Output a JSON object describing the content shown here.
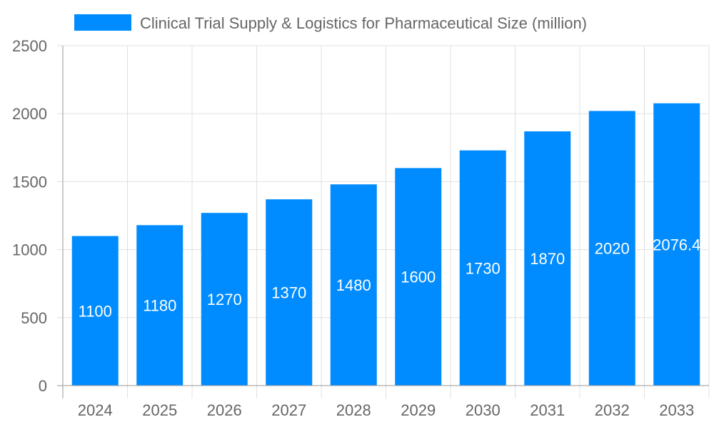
{
  "chart_data": {
    "type": "bar",
    "categories": [
      "2024",
      "2025",
      "2026",
      "2027",
      "2028",
      "2029",
      "2030",
      "2031",
      "2032",
      "2033"
    ],
    "series": [
      {
        "name": "Clinical Trial Supply & Logistics for Pharmaceutical Size (million)",
        "values": [
          1100,
          1180,
          1270,
          1370,
          1480,
          1600,
          1730,
          1870,
          2020,
          2076.4
        ]
      }
    ],
    "data_labels": [
      "1100",
      "1180",
      "1270",
      "1370",
      "1480",
      "1600",
      "1730",
      "1870",
      "2020",
      "2076.4"
    ],
    "ylim": [
      0,
      2500
    ],
    "yticks": [
      0,
      500,
      1000,
      1500,
      2000,
      2500
    ],
    "grid": true,
    "legend": "top",
    "colors": {
      "bar": "#008cff",
      "grid": "#e0e0e0",
      "text": "#666666",
      "label": "#ffffff"
    }
  }
}
